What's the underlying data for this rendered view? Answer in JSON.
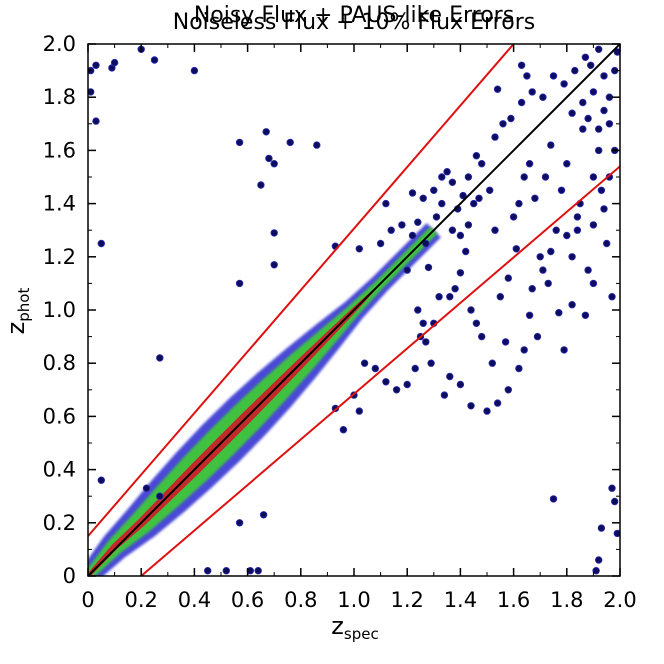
{
  "chart_data": {
    "type": "scatter",
    "title_line1": "Noisy Flux + PAUS-like Errors",
    "title_line2": "Noiseless Flux + 10% Flux Errors",
    "xlabel_main": "z",
    "xlabel_sub": "spec",
    "ylabel_main": "z",
    "ylabel_sub": "phot",
    "xlim": [
      0,
      2.0
    ],
    "ylim": [
      0,
      2.0
    ],
    "xticks": [
      "0",
      "0.2",
      "0.4",
      "0.6",
      "0.8",
      "1.0",
      "1.2",
      "1.4",
      "1.6",
      "1.8",
      "2.0"
    ],
    "yticks": [
      "0",
      "0.2",
      "0.4",
      "0.6",
      "0.8",
      "1.0",
      "1.2",
      "1.4",
      "1.6",
      "1.8",
      "2.0"
    ],
    "grid": false,
    "legend": "none",
    "colors": {
      "outlier_point": "#0d0d5e",
      "density_low": "#4a4ad6",
      "density_mid": "#3fc23f",
      "density_high": "#c22a2a",
      "identity_line": "#000000",
      "outlier_bound": "#e01010"
    },
    "lines": [
      {
        "name": "identity",
        "points": [
          [
            0,
            0
          ],
          [
            2.0,
            2.0
          ]
        ]
      },
      {
        "name": "upper-bound",
        "points": [
          [
            0,
            0.15
          ],
          [
            1.6,
            2.0
          ]
        ]
      },
      {
        "name": "lower-bound",
        "points": [
          [
            0.2,
            0
          ],
          [
            2.0,
            1.54
          ]
        ]
      }
    ],
    "density_ridge": [
      [
        0.0,
        0.0
      ],
      [
        0.1,
        0.11
      ],
      [
        0.2,
        0.2
      ],
      [
        0.3,
        0.3
      ],
      [
        0.4,
        0.4
      ],
      [
        0.5,
        0.5
      ],
      [
        0.6,
        0.6
      ],
      [
        0.7,
        0.7
      ],
      [
        0.8,
        0.8
      ],
      [
        0.9,
        0.9
      ],
      [
        1.0,
        1.0
      ],
      [
        1.1,
        1.1
      ],
      [
        1.2,
        1.2
      ],
      [
        1.3,
        1.3
      ]
    ],
    "points": [
      [
        0.01,
        1.82
      ],
      [
        0.01,
        1.9
      ],
      [
        0.03,
        1.92
      ],
      [
        0.03,
        1.71
      ],
      [
        0.05,
        1.25
      ],
      [
        0.09,
        1.91
      ],
      [
        0.1,
        1.93
      ],
      [
        0.2,
        1.98
      ],
      [
        0.25,
        1.94
      ],
      [
        0.27,
        0.82
      ],
      [
        0.4,
        1.9
      ],
      [
        0.57,
        1.63
      ],
      [
        0.57,
        1.1
      ],
      [
        0.57,
        0.2
      ],
      [
        0.65,
        1.47
      ],
      [
        0.67,
        1.67
      ],
      [
        0.68,
        1.57
      ],
      [
        0.7,
        1.29
      ],
      [
        0.7,
        1.17
      ],
      [
        0.7,
        1.55
      ],
      [
        0.76,
        1.63
      ],
      [
        0.86,
        1.62
      ],
      [
        0.93,
        1.24
      ],
      [
        1.02,
        1.23
      ],
      [
        1.1,
        1.25
      ],
      [
        0.66,
        0.23
      ],
      [
        0.61,
        0.02
      ],
      [
        0.64,
        0.02
      ],
      [
        0.45,
        0.02
      ],
      [
        0.52,
        0.02
      ],
      [
        0.05,
        0.36
      ],
      [
        0.22,
        0.33
      ],
      [
        0.27,
        0.3
      ],
      [
        1.28,
        1.16
      ],
      [
        1.32,
        1.05
      ],
      [
        1.36,
        1.05
      ],
      [
        1.38,
        1.08
      ],
      [
        1.4,
        1.14
      ],
      [
        1.42,
        1.22
      ],
      [
        1.44,
        1.0
      ],
      [
        1.46,
        0.95
      ],
      [
        1.48,
        0.9
      ],
      [
        1.4,
        0.72
      ],
      [
        1.44,
        0.64
      ],
      [
        1.5,
        0.62
      ],
      [
        1.52,
        0.8
      ],
      [
        1.55,
        1.05
      ],
      [
        1.58,
        1.12
      ],
      [
        1.6,
        1.35
      ],
      [
        1.62,
        1.4
      ],
      [
        1.64,
        1.5
      ],
      [
        1.66,
        1.55
      ],
      [
        1.68,
        1.42
      ],
      [
        1.7,
        1.2
      ],
      [
        1.72,
        1.5
      ],
      [
        1.74,
        1.62
      ],
      [
        1.76,
        1.3
      ],
      [
        1.78,
        1.45
      ],
      [
        1.8,
        1.55
      ],
      [
        1.82,
        1.2
      ],
      [
        1.84,
        1.35
      ],
      [
        1.86,
        1.68
      ],
      [
        1.88,
        1.72
      ],
      [
        1.9,
        1.5
      ],
      [
        1.92,
        1.6
      ],
      [
        1.94,
        1.75
      ],
      [
        1.96,
        1.8
      ],
      [
        1.98,
        1.9
      ],
      [
        1.99,
        1.97
      ],
      [
        1.97,
        1.05
      ],
      [
        1.95,
        1.25
      ],
      [
        1.93,
        1.45
      ],
      [
        1.9,
        1.1
      ],
      [
        1.87,
        0.98
      ],
      [
        1.85,
        1.4
      ],
      [
        1.82,
        1.02
      ],
      [
        1.79,
        0.85
      ],
      [
        1.77,
        0.99
      ],
      [
        1.73,
        1.1
      ],
      [
        1.69,
        0.9
      ],
      [
        1.66,
        0.98
      ],
      [
        1.61,
        1.23
      ],
      [
        1.57,
        0.88
      ],
      [
        1.53,
        1.3
      ],
      [
        1.51,
        1.45
      ],
      [
        1.48,
        1.55
      ],
      [
        1.46,
        1.58
      ],
      [
        1.45,
        1.4
      ],
      [
        1.43,
        1.5
      ],
      [
        1.41,
        1.43
      ],
      [
        1.39,
        1.38
      ],
      [
        1.37,
        1.48
      ],
      [
        1.35,
        1.52
      ],
      [
        1.33,
        1.4
      ],
      [
        1.31,
        1.35
      ],
      [
        1.26,
        1.42
      ],
      [
        1.22,
        1.44
      ],
      [
        1.18,
        1.32
      ],
      [
        1.14,
        1.3
      ],
      [
        1.12,
        1.4
      ],
      [
        1.53,
        1.65
      ],
      [
        1.56,
        1.7
      ],
      [
        1.59,
        1.72
      ],
      [
        1.63,
        1.78
      ],
      [
        1.67,
        1.82
      ],
      [
        1.71,
        1.8
      ],
      [
        1.75,
        1.88
      ],
      [
        1.79,
        1.85
      ],
      [
        1.83,
        1.9
      ],
      [
        1.87,
        1.95
      ],
      [
        1.89,
        1.92
      ],
      [
        1.92,
        1.98
      ],
      [
        1.54,
        1.83
      ],
      [
        1.63,
        1.92
      ],
      [
        1.65,
        1.88
      ],
      [
        1.75,
        0.29
      ],
      [
        1.93,
        0.18
      ],
      [
        1.97,
        0.33
      ],
      [
        1.98,
        0.28
      ],
      [
        1.99,
        0.16
      ],
      [
        1.92,
        0.06
      ],
      [
        1.91,
        0.02
      ],
      [
        1.12,
        0.73
      ],
      [
        1.16,
        0.7
      ],
      [
        1.2,
        0.72
      ],
      [
        1.08,
        0.78
      ],
      [
        1.04,
        0.8
      ],
      [
        1.02,
        0.62
      ],
      [
        1.0,
        0.68
      ],
      [
        0.96,
        0.55
      ],
      [
        0.93,
        0.63
      ],
      [
        1.25,
        0.9
      ],
      [
        1.23,
        0.78
      ],
      [
        1.27,
        0.88
      ],
      [
        1.29,
        0.8
      ],
      [
        1.34,
        0.68
      ],
      [
        1.36,
        0.75
      ],
      [
        1.3,
        0.95
      ],
      [
        1.24,
        1.0
      ],
      [
        1.26,
        0.95
      ],
      [
        1.54,
        0.65
      ],
      [
        1.58,
        0.7
      ],
      [
        1.62,
        0.78
      ],
      [
        1.64,
        0.85
      ],
      [
        1.67,
        1.08
      ],
      [
        1.71,
        1.15
      ],
      [
        1.74,
        1.22
      ],
      [
        1.8,
        1.28
      ],
      [
        1.84,
        1.3
      ],
      [
        1.88,
        1.15
      ],
      [
        1.9,
        1.32
      ],
      [
        1.94,
        1.38
      ],
      [
        1.96,
        1.5
      ],
      [
        1.98,
        1.6
      ],
      [
        1.92,
        1.68
      ],
      [
        1.96,
        1.7
      ],
      [
        1.94,
        1.88
      ],
      [
        1.9,
        1.82
      ],
      [
        1.86,
        1.78
      ],
      [
        1.82,
        1.74
      ],
      [
        1.2,
        1.15
      ],
      [
        1.22,
        1.28
      ],
      [
        1.24,
        1.33
      ],
      [
        1.27,
        1.25
      ],
      [
        1.3,
        1.45
      ],
      [
        1.33,
        1.5
      ],
      [
        1.37,
        1.3
      ],
      [
        1.4,
        1.28
      ],
      [
        1.43,
        1.32
      ],
      [
        1.47,
        1.42
      ]
    ]
  }
}
